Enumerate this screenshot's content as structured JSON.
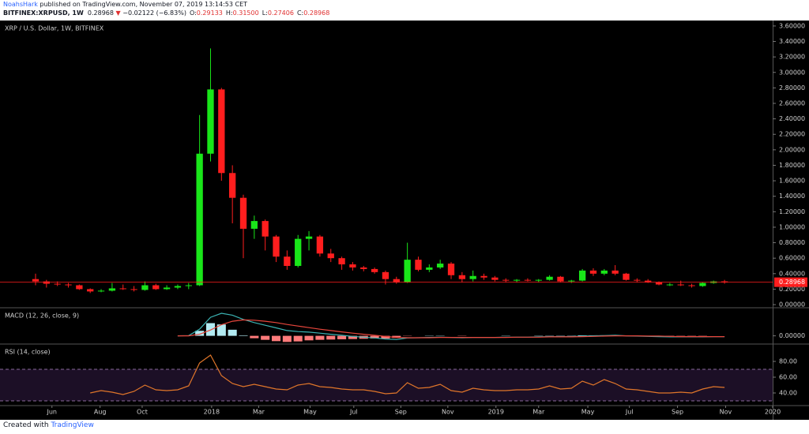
{
  "header": {
    "author": "NoahsHark",
    "published": " published on TradingView.com, November 07, 2019 13:14:53 CET",
    "symbol": "BITFINEX:XRPUSD, 1W",
    "last": "0.28968",
    "arrow": "▼",
    "change": "−0.02122 (−6.83%)",
    "ohlc": [
      {
        "key": "O:",
        "value": "0.29133"
      },
      {
        "key": "H:",
        "value": "0.31500"
      },
      {
        "key": "L:",
        "value": "0.27406"
      },
      {
        "key": "C:",
        "value": "0.28968"
      }
    ]
  },
  "footer": {
    "text": "Created with",
    "brand": "TradingView"
  },
  "chart_data": [
    {
      "type": "candlestick",
      "title": "XRP / U.S. Dollar, 1W, BITFINEX",
      "up_color": "#19e619",
      "down_color": "#ff1e1e",
      "open": [
        0.33,
        0.3,
        0.27,
        0.26,
        0.25,
        0.2,
        0.17,
        0.18,
        0.21,
        0.2,
        0.19,
        0.25,
        0.2,
        0.22,
        0.24,
        0.25,
        1.95,
        2.78,
        1.7,
        1.38,
        0.98,
        1.08,
        0.88,
        0.62,
        0.5,
        0.85,
        0.88,
        0.66,
        0.6,
        0.52,
        0.48,
        0.46,
        0.42,
        0.33,
        0.29,
        0.58,
        0.45,
        0.48,
        0.53,
        0.38,
        0.33,
        0.37,
        0.35,
        0.32,
        0.31,
        0.32,
        0.31,
        0.32,
        0.36,
        0.3,
        0.31,
        0.44,
        0.4,
        0.44,
        0.4,
        0.32,
        0.31,
        0.29,
        0.26,
        0.26,
        0.25,
        0.24,
        0.28,
        0.3
      ],
      "high": [
        0.4,
        0.32,
        0.3,
        0.28,
        0.26,
        0.21,
        0.2,
        0.28,
        0.26,
        0.24,
        0.3,
        0.27,
        0.25,
        0.26,
        0.28,
        2.45,
        3.31,
        2.8,
        1.8,
        1.42,
        1.15,
        1.1,
        0.9,
        0.7,
        0.9,
        0.95,
        0.9,
        0.72,
        0.62,
        0.55,
        0.5,
        0.48,
        0.44,
        0.36,
        0.8,
        0.62,
        0.52,
        0.58,
        0.55,
        0.42,
        0.44,
        0.4,
        0.37,
        0.34,
        0.33,
        0.34,
        0.33,
        0.38,
        0.37,
        0.32,
        0.46,
        0.47,
        0.46,
        0.51,
        0.41,
        0.34,
        0.33,
        0.3,
        0.28,
        0.31,
        0.27,
        0.29,
        0.31,
        0.32
      ],
      "low": [
        0.25,
        0.22,
        0.24,
        0.22,
        0.19,
        0.15,
        0.16,
        0.17,
        0.19,
        0.17,
        0.18,
        0.19,
        0.19,
        0.2,
        0.2,
        0.24,
        1.85,
        1.6,
        1.05,
        0.6,
        0.85,
        0.7,
        0.55,
        0.45,
        0.48,
        0.7,
        0.62,
        0.55,
        0.45,
        0.44,
        0.43,
        0.4,
        0.26,
        0.27,
        0.28,
        0.43,
        0.42,
        0.46,
        0.33,
        0.29,
        0.3,
        0.32,
        0.3,
        0.29,
        0.29,
        0.3,
        0.29,
        0.31,
        0.29,
        0.28,
        0.3,
        0.37,
        0.38,
        0.38,
        0.31,
        0.29,
        0.28,
        0.25,
        0.24,
        0.24,
        0.22,
        0.23,
        0.27,
        0.27
      ],
      "close": [
        0.3,
        0.27,
        0.26,
        0.25,
        0.2,
        0.17,
        0.18,
        0.21,
        0.2,
        0.19,
        0.25,
        0.2,
        0.22,
        0.24,
        0.25,
        1.95,
        2.78,
        1.7,
        1.38,
        0.98,
        1.08,
        0.88,
        0.62,
        0.5,
        0.85,
        0.88,
        0.66,
        0.6,
        0.52,
        0.48,
        0.46,
        0.42,
        0.33,
        0.29,
        0.58,
        0.45,
        0.48,
        0.53,
        0.38,
        0.33,
        0.37,
        0.35,
        0.32,
        0.31,
        0.32,
        0.31,
        0.32,
        0.36,
        0.3,
        0.31,
        0.44,
        0.4,
        0.44,
        0.4,
        0.32,
        0.31,
        0.29,
        0.26,
        0.26,
        0.25,
        0.24,
        0.28,
        0.3,
        0.29
      ],
      "last_price": 0.28968,
      "last_color": "#ff1e1e",
      "xlim": [
        -3.25,
        67.4
      ],
      "ylim": [
        -0.02,
        3.65
      ],
      "yticks": [
        {
          "value": 0,
          "label": "0.00000"
        },
        {
          "value": 0.2,
          "label": "0.20000"
        },
        {
          "value": 0.4,
          "label": "0.40000"
        },
        {
          "value": 0.6,
          "label": "0.60000"
        },
        {
          "value": 0.8,
          "label": "0.80000"
        },
        {
          "value": 1,
          "label": "1.00000"
        },
        {
          "value": 1.2,
          "label": "1.20000"
        },
        {
          "value": 1.4,
          "label": "1.40000"
        },
        {
          "value": 1.6,
          "label": "1.60000"
        },
        {
          "value": 1.8,
          "label": "1.80000"
        },
        {
          "value": 2,
          "label": "2.00000"
        },
        {
          "value": 2.2,
          "label": "2.20000"
        },
        {
          "value": 2.4,
          "label": "2.40000"
        },
        {
          "value": 2.6,
          "label": "2.60000"
        },
        {
          "value": 2.8,
          "label": "2.80000"
        },
        {
          "value": 3,
          "label": "3.00000"
        },
        {
          "value": 3.2,
          "label": "3.20000"
        },
        {
          "value": 3.4,
          "label": "3.40000"
        },
        {
          "value": 3.6,
          "label": "3.60000"
        }
      ]
    },
    {
      "type": "macd",
      "title": "MACD (12, 26, close, 9)",
      "xlim": [
        -3.25,
        67.4
      ],
      "ylim": [
        -0.25,
        1.0
      ],
      "yticks": [
        {
          "value": 0,
          "label": "0.00000"
        }
      ],
      "series": [
        {
          "name": "MACD",
          "color": "#3bb3b3",
          "values": [
            null,
            null,
            null,
            null,
            null,
            null,
            null,
            null,
            null,
            null,
            null,
            null,
            null,
            0.0,
            0.01,
            0.25,
            0.7,
            0.85,
            0.78,
            0.62,
            0.5,
            0.4,
            0.3,
            0.2,
            0.16,
            0.14,
            0.1,
            0.06,
            0.02,
            -0.02,
            -0.05,
            -0.08,
            -0.12,
            -0.14,
            -0.08,
            -0.07,
            -0.06,
            -0.05,
            -0.06,
            -0.07,
            -0.06,
            -0.06,
            -0.06,
            -0.05,
            -0.05,
            -0.05,
            -0.04,
            -0.03,
            -0.03,
            -0.03,
            -0.01,
            0.0,
            0.01,
            0.02,
            0.0,
            -0.01,
            -0.02,
            -0.03,
            -0.04,
            -0.04,
            -0.04,
            -0.04,
            -0.03,
            -0.03
          ]
        },
        {
          "name": "Signal",
          "color": "#e8463c",
          "values": [
            null,
            null,
            null,
            null,
            null,
            null,
            null,
            null,
            null,
            null,
            null,
            null,
            null,
            0.0,
            0.0,
            0.06,
            0.22,
            0.42,
            0.55,
            0.6,
            0.59,
            0.55,
            0.5,
            0.43,
            0.37,
            0.31,
            0.25,
            0.2,
            0.15,
            0.1,
            0.06,
            0.02,
            -0.02,
            -0.06,
            -0.07,
            -0.07,
            -0.07,
            -0.06,
            -0.06,
            -0.06,
            -0.06,
            -0.06,
            -0.06,
            -0.06,
            -0.05,
            -0.05,
            -0.05,
            -0.04,
            -0.04,
            -0.04,
            -0.03,
            -0.02,
            -0.01,
            0.0,
            0.0,
            0.0,
            -0.01,
            -0.01,
            -0.02,
            -0.03,
            -0.03,
            -0.03,
            -0.03,
            -0.03
          ]
        },
        {
          "name": "Histogram",
          "color": "#b2ebf2",
          "neg_color": "#ff7b7b",
          "values": [
            null,
            null,
            null,
            null,
            null,
            null,
            null,
            null,
            null,
            null,
            null,
            null,
            null,
            0,
            0.01,
            0.19,
            0.48,
            0.43,
            0.23,
            0.02,
            -0.09,
            -0.15,
            -0.2,
            -0.23,
            -0.21,
            -0.17,
            -0.15,
            -0.14,
            -0.13,
            -0.12,
            -0.11,
            -0.1,
            -0.1,
            -0.08,
            -0.01,
            0,
            0.01,
            0.01,
            0,
            -0.01,
            0,
            0,
            0,
            0.01,
            0,
            0,
            0.01,
            0.01,
            0.01,
            0.01,
            0.02,
            0.02,
            0.02,
            0.02,
            0,
            -0.01,
            -0.01,
            -0.02,
            -0.02,
            -0.01,
            -0.01,
            -0.01,
            0,
            0
          ]
        }
      ]
    },
    {
      "type": "rsi",
      "title": "RSI (14, close)",
      "xlim": [
        -3.25,
        67.4
      ],
      "ylim": [
        26,
        100
      ],
      "bands": [
        70,
        30
      ],
      "band_fill": "#1c0f26",
      "band_color": "#8a6a9a",
      "yticks": [
        {
          "value": 40,
          "label": "40.00"
        },
        {
          "value": 60,
          "label": "60.00"
        },
        {
          "value": 80,
          "label": "80.00"
        }
      ],
      "series": [
        {
          "name": "RSI",
          "color": "#e0762a",
          "values": [
            null,
            null,
            null,
            null,
            null,
            40,
            43,
            41,
            38,
            42,
            50,
            44,
            43,
            44,
            49,
            78,
            88,
            62,
            52,
            48,
            51,
            48,
            45,
            44,
            50,
            52,
            48,
            47,
            45,
            44,
            44,
            42,
            39,
            40,
            53,
            46,
            47,
            51,
            43,
            41,
            46,
            44,
            43,
            43,
            44,
            44,
            45,
            49,
            45,
            46,
            55,
            50,
            57,
            52,
            45,
            44,
            42,
            40,
            40,
            41,
            40,
            45,
            48,
            47
          ]
        }
      ],
      "xticks": [
        {
          "value": 1.5,
          "label": "Jun"
        },
        {
          "value": 5.9,
          "label": "Aug"
        },
        {
          "value": 9.75,
          "label": "Oct"
        },
        {
          "value": 16.1,
          "label": "2018"
        },
        {
          "value": 20.4,
          "label": "Mar"
        },
        {
          "value": 25.1,
          "label": "May"
        },
        {
          "value": 29.1,
          "label": "Jul"
        },
        {
          "value": 33.4,
          "label": "Sep"
        },
        {
          "value": 37.7,
          "label": "Nov"
        },
        {
          "value": 42.1,
          "label": "2019"
        },
        {
          "value": 46.0,
          "label": "Mar"
        },
        {
          "value": 50.5,
          "label": "May"
        },
        {
          "value": 54.3,
          "label": "Jul"
        },
        {
          "value": 58.7,
          "label": "Sep"
        },
        {
          "value": 63.1,
          "label": "Nov"
        },
        {
          "value": 67.4,
          "label": "2020"
        }
      ]
    }
  ]
}
